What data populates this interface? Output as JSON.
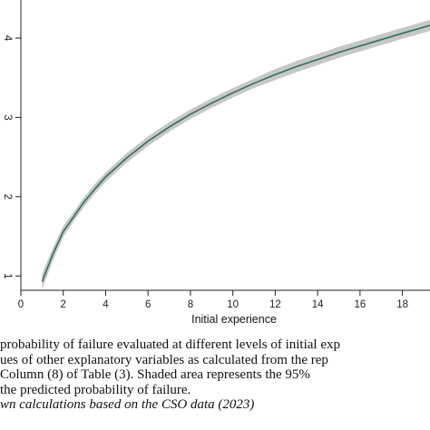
{
  "chart_data": {
    "type": "line",
    "xlabel": "Initial experience",
    "ylabel": "",
    "xlim": [
      0,
      19.3
    ],
    "ylim": [
      0.082,
      0.448
    ],
    "x_ticks": [
      0,
      2,
      4,
      6,
      8,
      10,
      12,
      14,
      16,
      18
    ],
    "y_tick_values": [
      0.1,
      0.2,
      0.3,
      0.4
    ],
    "y_tick_labels": [
      "1",
      "2",
      "3",
      "4"
    ],
    "series": [
      {
        "x": [
          1,
          1.5,
          2,
          2.5,
          3,
          3.5,
          4,
          5,
          6,
          7,
          8,
          9,
          10,
          11,
          12,
          13,
          14,
          15,
          16,
          17,
          18,
          19.3
        ],
        "y": [
          0.093,
          0.127,
          0.156,
          0.175,
          0.194,
          0.21,
          0.225,
          0.249,
          0.27,
          0.288,
          0.304,
          0.318,
          0.331,
          0.343,
          0.354,
          0.364,
          0.373,
          0.382,
          0.39,
          0.398,
          0.406,
          0.416
        ],
        "ci_lower": [
          0.083,
          0.119,
          0.149,
          0.169,
          0.188,
          0.204,
          0.219,
          0.243,
          0.264,
          0.282,
          0.298,
          0.312,
          0.325,
          0.337,
          0.347,
          0.357,
          0.366,
          0.375,
          0.383,
          0.391,
          0.399,
          0.409
        ],
        "ci_upper": [
          0.103,
          0.135,
          0.163,
          0.181,
          0.2,
          0.216,
          0.231,
          0.255,
          0.276,
          0.294,
          0.31,
          0.324,
          0.337,
          0.349,
          0.361,
          0.371,
          0.38,
          0.389,
          0.397,
          0.405,
          0.413,
          0.423
        ]
      }
    ],
    "colors": {
      "line": "#2f6f62",
      "band": "#c7c7c7",
      "axis": "#222222"
    },
    "grid": false,
    "legend": "none"
  },
  "caption": {
    "lines": [
      "probability of failure evaluated at different levels of initial exp",
      "ues of other explanatory variables as calculated from the rep",
      "Column (8) of Table (3).  Shaded area represents the 95%",
      " the predicted probability of failure."
    ],
    "source": "wn calculations based on the CSO data (2023)"
  }
}
